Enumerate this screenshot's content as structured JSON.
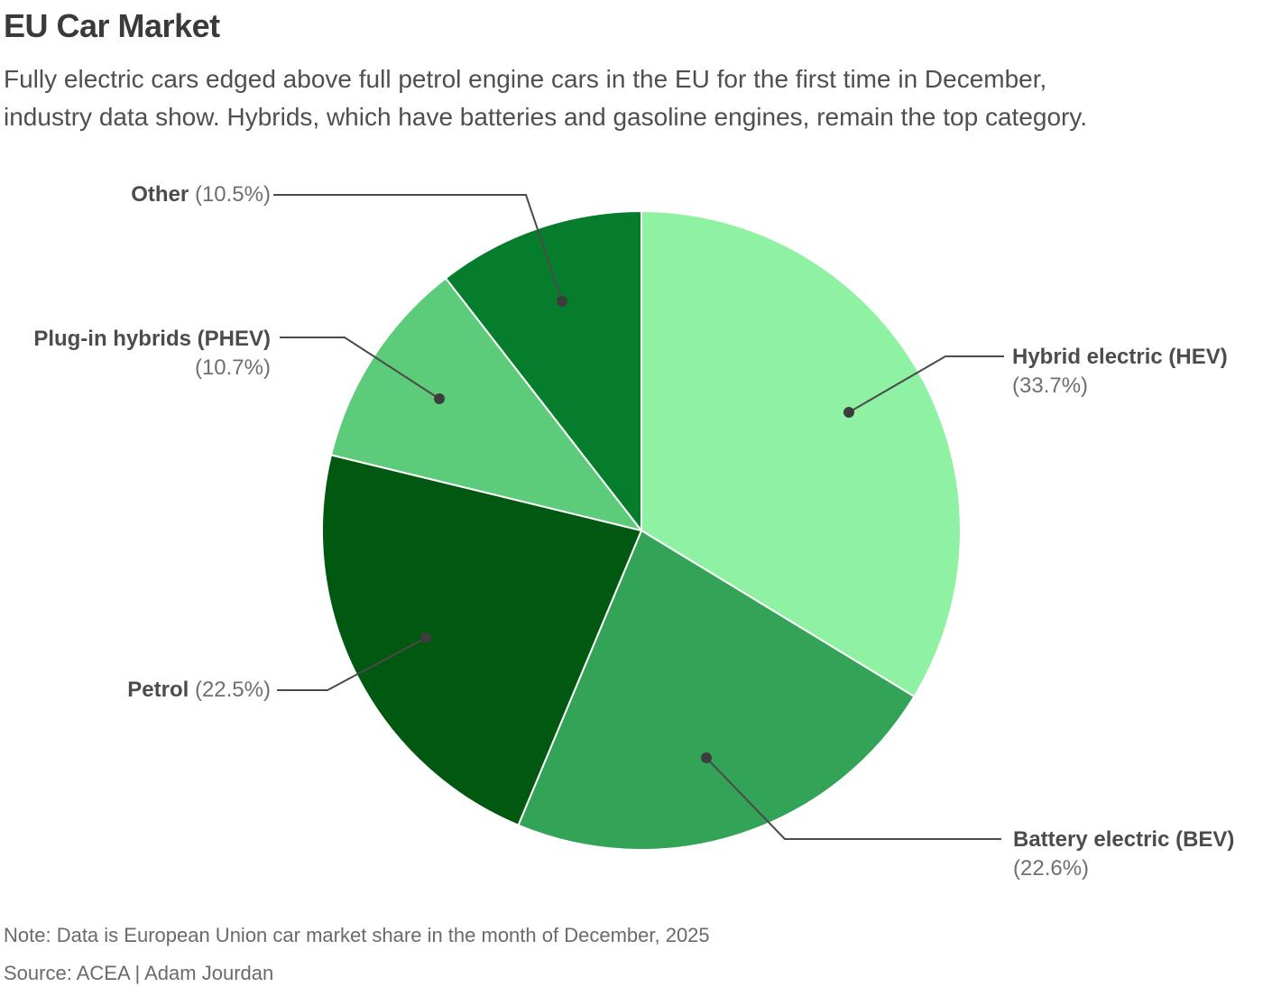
{
  "header": {
    "title": "EU Car Market",
    "subtitle_lines": [
      "Fully electric cars edged above full petrol engine cars in the EU for the first time in December,",
      "industry data show. Hybrids, which have batteries and gasoline engines, remain the top category."
    ]
  },
  "chart_data": {
    "type": "pie",
    "title": "EU Car Market",
    "unit": "percent of EU car market share",
    "direction": "clockwise",
    "start_angle_deg": 0,
    "keys": [
      "hev",
      "bev",
      "petrol",
      "phev",
      "other"
    ],
    "categories": [
      "Hybrid electric (HEV)",
      "Battery electric (BEV)",
      "Petrol",
      "Plug-in hybrids (PHEV)",
      "Other"
    ],
    "values": [
      33.7,
      22.6,
      22.5,
      10.7,
      10.5
    ],
    "colors": [
      "#8FF2A2",
      "#33A457",
      "#015810",
      "#5CCC7A",
      "#067D2C"
    ],
    "slice_border_color": "#ffffff",
    "labels": [
      {
        "name": "Hybrid electric (HEV)",
        "pct": "(33.7%)"
      },
      {
        "name": "Battery electric (BEV)",
        "pct": "(22.6%)"
      },
      {
        "name": "Petrol",
        "pct": "(22.5%)"
      },
      {
        "name": "Plug-in hybrids (PHEV)",
        "pct": "(10.7%)"
      },
      {
        "name": "Other",
        "pct": "(10.5%)"
      }
    ]
  },
  "footer": {
    "note": "Note: Data is European Union car market share in the month of December, 2025",
    "source": "Source: ACEA | Adam Jourdan"
  },
  "style": {
    "leader_color": "#4a4a4a",
    "leader_dot_color": "#3d3d3d",
    "title_color": "#3a3a3a",
    "label_name_color": "#4c4c4c",
    "label_pct_color": "#6f6f6f"
  }
}
